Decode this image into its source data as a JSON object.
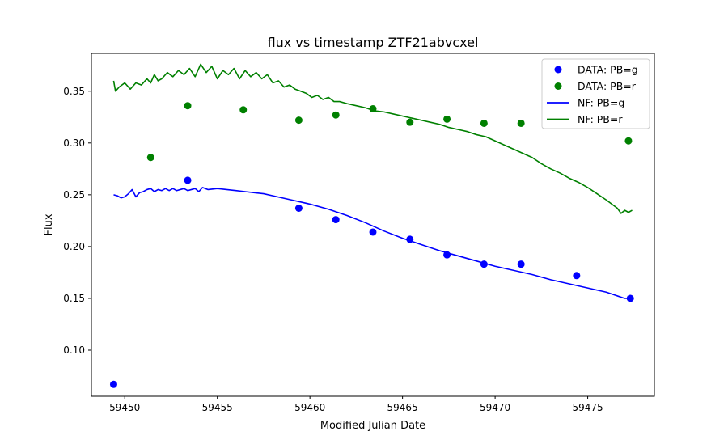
{
  "chart_data": {
    "type": "scatter",
    "title": "flux vs timestamp ZTF21abvcxel",
    "xlabel": "Modified Julian Date",
    "ylabel": "Flux",
    "xlim": [
      59448.2,
      59478.6
    ],
    "ylim": [
      0.0555,
      0.3865
    ],
    "xticks": [
      59450,
      59455,
      59460,
      59465,
      59470,
      59475
    ],
    "xtick_labels": [
      "59450",
      "59455",
      "59460",
      "59465",
      "59470",
      "59475"
    ],
    "yticks": [
      0.1,
      0.15,
      0.2,
      0.25,
      0.3,
      0.35
    ],
    "ytick_labels": [
      "0.10",
      "0.15",
      "0.20",
      "0.25",
      "0.30",
      "0.35"
    ],
    "legend_position": "top-right",
    "scatter_series": [
      {
        "name": "DATA: PB=g",
        "color": "#0000ff",
        "points": [
          [
            59449.4,
            0.067
          ],
          [
            59453.4,
            0.264
          ],
          [
            59459.4,
            0.237
          ],
          [
            59461.4,
            0.226
          ],
          [
            59463.4,
            0.214
          ],
          [
            59465.4,
            0.207
          ],
          [
            59467.4,
            0.192
          ],
          [
            59469.4,
            0.183
          ],
          [
            59471.4,
            0.183
          ],
          [
            59474.4,
            0.172
          ],
          [
            59477.3,
            0.15
          ]
        ]
      },
      {
        "name": "DATA: PB=r",
        "color": "#008000",
        "points": [
          [
            59451.4,
            0.286
          ],
          [
            59453.4,
            0.336
          ],
          [
            59456.4,
            0.332
          ],
          [
            59459.4,
            0.322
          ],
          [
            59461.4,
            0.327
          ],
          [
            59463.4,
            0.333
          ],
          [
            59465.4,
            0.32
          ],
          [
            59467.4,
            0.323
          ],
          [
            59469.4,
            0.319
          ],
          [
            59471.4,
            0.319
          ],
          [
            59477.2,
            0.302
          ]
        ]
      }
    ],
    "line_series": [
      {
        "name": "NF: PB=g",
        "color": "#0000ff",
        "points": [
          [
            59449.4,
            0.25
          ],
          [
            59449.6,
            0.249
          ],
          [
            59449.8,
            0.247
          ],
          [
            59450.0,
            0.248
          ],
          [
            59450.2,
            0.251
          ],
          [
            59450.4,
            0.255
          ],
          [
            59450.6,
            0.248
          ],
          [
            59450.8,
            0.252
          ],
          [
            59451.0,
            0.253
          ],
          [
            59451.2,
            0.255
          ],
          [
            59451.4,
            0.256
          ],
          [
            59451.6,
            0.253
          ],
          [
            59451.8,
            0.255
          ],
          [
            59452.0,
            0.254
          ],
          [
            59452.2,
            0.256
          ],
          [
            59452.4,
            0.254
          ],
          [
            59452.6,
            0.256
          ],
          [
            59452.8,
            0.254
          ],
          [
            59453.0,
            0.255
          ],
          [
            59453.2,
            0.256
          ],
          [
            59453.4,
            0.254
          ],
          [
            59453.6,
            0.255
          ],
          [
            59453.8,
            0.256
          ],
          [
            59454.0,
            0.253
          ],
          [
            59454.2,
            0.257
          ],
          [
            59454.5,
            0.255
          ],
          [
            59455.0,
            0.256
          ],
          [
            59455.5,
            0.255
          ],
          [
            59456.0,
            0.254
          ],
          [
            59456.5,
            0.253
          ],
          [
            59457.0,
            0.252
          ],
          [
            59457.5,
            0.251
          ],
          [
            59458.0,
            0.249
          ],
          [
            59459.0,
            0.245
          ],
          [
            59460.0,
            0.241
          ],
          [
            59461.0,
            0.236
          ],
          [
            59462.0,
            0.23
          ],
          [
            59463.0,
            0.223
          ],
          [
            59464.0,
            0.215
          ],
          [
            59465.0,
            0.208
          ],
          [
            59466.0,
            0.202
          ],
          [
            59467.0,
            0.196
          ],
          [
            59468.0,
            0.191
          ],
          [
            59469.0,
            0.186
          ],
          [
            59470.0,
            0.181
          ],
          [
            59471.0,
            0.177
          ],
          [
            59472.0,
            0.173
          ],
          [
            59473.0,
            0.168
          ],
          [
            59474.0,
            0.164
          ],
          [
            59475.0,
            0.16
          ],
          [
            59476.0,
            0.156
          ],
          [
            59476.5,
            0.153
          ],
          [
            59477.0,
            0.15
          ],
          [
            59477.3,
            0.15
          ]
        ]
      },
      {
        "name": "NF: PB=r",
        "color": "#008000",
        "points": [
          [
            59449.4,
            0.36
          ],
          [
            59449.5,
            0.35
          ],
          [
            59449.7,
            0.354
          ],
          [
            59450.0,
            0.358
          ],
          [
            59450.3,
            0.352
          ],
          [
            59450.6,
            0.358
          ],
          [
            59450.9,
            0.356
          ],
          [
            59451.2,
            0.362
          ],
          [
            59451.4,
            0.358
          ],
          [
            59451.6,
            0.366
          ],
          [
            59451.8,
            0.36
          ],
          [
            59452.0,
            0.362
          ],
          [
            59452.3,
            0.368
          ],
          [
            59452.6,
            0.364
          ],
          [
            59452.9,
            0.37
          ],
          [
            59453.2,
            0.366
          ],
          [
            59453.5,
            0.372
          ],
          [
            59453.8,
            0.364
          ],
          [
            59454.1,
            0.376
          ],
          [
            59454.4,
            0.368
          ],
          [
            59454.7,
            0.374
          ],
          [
            59455.0,
            0.362
          ],
          [
            59455.3,
            0.37
          ],
          [
            59455.6,
            0.366
          ],
          [
            59455.9,
            0.372
          ],
          [
            59456.2,
            0.362
          ],
          [
            59456.5,
            0.37
          ],
          [
            59456.8,
            0.364
          ],
          [
            59457.1,
            0.368
          ],
          [
            59457.4,
            0.362
          ],
          [
            59457.7,
            0.366
          ],
          [
            59458.0,
            0.358
          ],
          [
            59458.3,
            0.36
          ],
          [
            59458.6,
            0.354
          ],
          [
            59458.9,
            0.356
          ],
          [
            59459.2,
            0.352
          ],
          [
            59459.5,
            0.35
          ],
          [
            59459.8,
            0.348
          ],
          [
            59460.1,
            0.344
          ],
          [
            59460.4,
            0.346
          ],
          [
            59460.7,
            0.342
          ],
          [
            59461.0,
            0.344
          ],
          [
            59461.3,
            0.34
          ],
          [
            59461.6,
            0.34
          ],
          [
            59462.0,
            0.338
          ],
          [
            59462.5,
            0.336
          ],
          [
            59463.0,
            0.334
          ],
          [
            59463.5,
            0.331
          ],
          [
            59464.0,
            0.33
          ],
          [
            59464.5,
            0.328
          ],
          [
            59465.0,
            0.326
          ],
          [
            59465.5,
            0.324
          ],
          [
            59466.0,
            0.322
          ],
          [
            59466.5,
            0.32
          ],
          [
            59467.0,
            0.318
          ],
          [
            59467.5,
            0.315
          ],
          [
            59468.0,
            0.313
          ],
          [
            59468.5,
            0.311
          ],
          [
            59469.0,
            0.308
          ],
          [
            59469.5,
            0.306
          ],
          [
            59470.0,
            0.302
          ],
          [
            59470.5,
            0.298
          ],
          [
            59471.0,
            0.294
          ],
          [
            59471.5,
            0.29
          ],
          [
            59472.0,
            0.286
          ],
          [
            59472.5,
            0.28
          ],
          [
            59473.0,
            0.275
          ],
          [
            59473.5,
            0.271
          ],
          [
            59474.0,
            0.266
          ],
          [
            59474.5,
            0.262
          ],
          [
            59475.0,
            0.257
          ],
          [
            59475.5,
            0.251
          ],
          [
            59476.0,
            0.245
          ],
          [
            59476.3,
            0.241
          ],
          [
            59476.6,
            0.237
          ],
          [
            59476.8,
            0.232
          ],
          [
            59477.0,
            0.235
          ],
          [
            59477.2,
            0.233
          ],
          [
            59477.4,
            0.235
          ]
        ]
      }
    ],
    "legend": [
      {
        "label": "DATA: PB=g",
        "kind": "marker",
        "color": "#0000ff"
      },
      {
        "label": "DATA: PB=r",
        "kind": "marker",
        "color": "#008000"
      },
      {
        "label": "NF: PB=g",
        "kind": "line",
        "color": "#0000ff"
      },
      {
        "label": "NF: PB=r",
        "kind": "line",
        "color": "#008000"
      }
    ]
  }
}
